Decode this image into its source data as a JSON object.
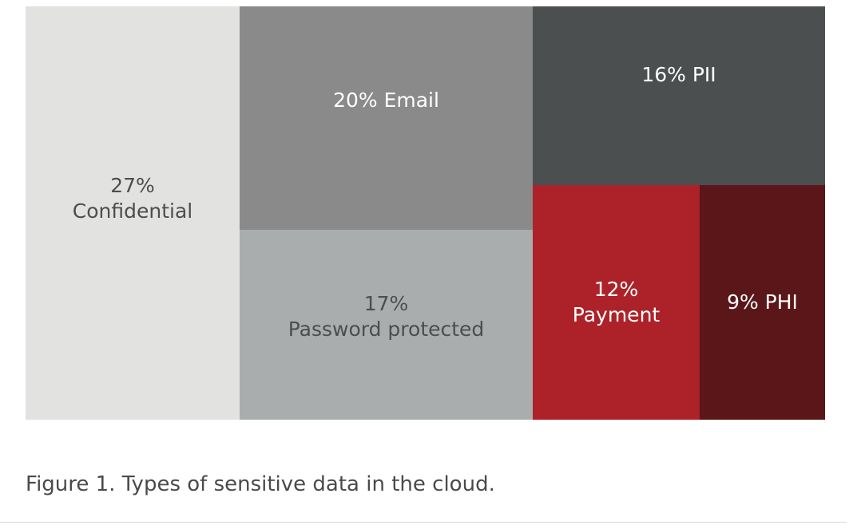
{
  "caption": "Figure 1. Types of sensitive data in the cloud.",
  "chart_data": {
    "type": "treemap",
    "unit": "%",
    "items": [
      {
        "name": "Confidential",
        "value": 27,
        "lines": [
          "27%",
          "Confidential"
        ],
        "color": "#e2e2e1",
        "text_color": "#4d4d4d"
      },
      {
        "name": "Email",
        "value": 20,
        "lines": [
          "20% Email"
        ],
        "color": "#8a8a8a",
        "text_color": "#ffffff"
      },
      {
        "name": "Password protected",
        "value": 17,
        "lines": [
          "17%",
          "Password protected"
        ],
        "color": "#a9adae",
        "text_color": "#4d4d4d"
      },
      {
        "name": "PII",
        "value": 16,
        "lines": [
          "16% PII"
        ],
        "color": "#4c4f50",
        "text_color": "#ffffff"
      },
      {
        "name": "Payment",
        "value": 12,
        "lines": [
          "12%",
          "Payment"
        ],
        "color": "#ad2229",
        "text_color": "#ffffff"
      },
      {
        "name": "PHI",
        "value": 9,
        "lines": [
          "9% PHI"
        ],
        "color": "#5a1618",
        "text_color": "#ffffff"
      }
    ]
  }
}
